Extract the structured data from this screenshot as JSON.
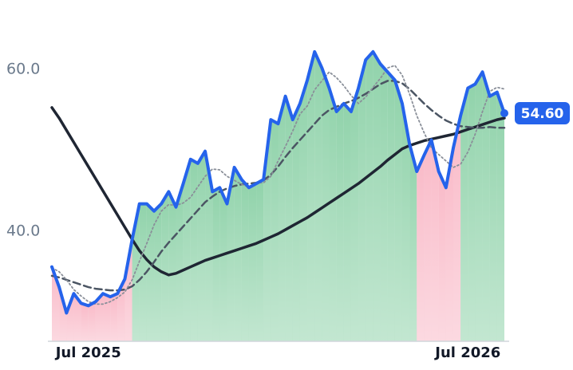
{
  "chart_data": {
    "type": "line",
    "categories": [
      null,
      null,
      null,
      null,
      null,
      "Jul 2025",
      null,
      null,
      null,
      null,
      null,
      null,
      null,
      null,
      null,
      null,
      null,
      null,
      null,
      null,
      null,
      null,
      null,
      null,
      null,
      null,
      null,
      null,
      null,
      null,
      null,
      null,
      null,
      null,
      null,
      null,
      null,
      null,
      null,
      null,
      null,
      null,
      null,
      null,
      null,
      null,
      null,
      null,
      null,
      null,
      null,
      null,
      null,
      null,
      null,
      null,
      null,
      "Jul 2026",
      null,
      null,
      null,
      null,
      null
    ],
    "ylim": [
      26.4,
      68.6
    ],
    "yticks": [
      {
        "value": 40,
        "label": "40.0"
      },
      {
        "value": 60,
        "label": "60.0"
      }
    ],
    "up_color": "#6cc48f",
    "down_color": "#f7a3b5",
    "series": [
      {
        "color": "#2563eb",
        "style": "solid",
        "width": 4,
        "values": [
          35.6,
          33.1,
          29.9,
          32.3,
          31.1,
          30.8,
          31.3,
          32.3,
          31.9,
          32.3,
          34.1,
          39.0,
          43.4,
          43.4,
          42.5,
          43.4,
          44.9,
          43.0,
          45.9,
          48.9,
          48.4,
          49.9,
          44.9,
          45.4,
          43.4,
          47.9,
          46.4,
          45.4,
          45.9,
          46.4,
          53.8,
          53.3,
          56.7,
          53.8,
          55.8,
          58.7,
          62.2,
          60.2,
          57.7,
          54.8,
          55.8,
          54.8,
          57.7,
          61.2,
          62.2,
          60.7,
          59.7,
          58.7,
          55.8,
          50.8,
          47.4,
          49.4,
          51.3,
          47.4,
          45.4,
          50.3,
          54.3,
          57.7,
          58.2,
          59.7,
          56.7,
          57.2,
          54.6
        ],
        "value_labels": [
          null,
          null,
          null,
          null,
          null,
          null,
          null,
          null,
          null,
          null,
          null,
          null,
          null,
          null,
          null,
          null,
          null,
          null,
          null,
          null,
          null,
          null,
          null,
          null,
          null,
          null,
          null,
          null,
          null,
          null,
          null,
          null,
          null,
          null,
          null,
          null,
          null,
          null,
          null,
          null,
          null,
          null,
          null,
          null,
          null,
          null,
          null,
          null,
          null,
          null,
          null,
          null,
          null,
          null,
          null,
          null,
          null,
          null,
          null,
          null,
          null,
          null,
          "54.60"
        ]
      },
      {
        "color": "#8a8f99",
        "style": "dotted",
        "width": 1.8,
        "values": [
          35.5,
          35.0,
          34.0,
          32.8,
          32.0,
          31.3,
          31.0,
          31.0,
          31.3,
          31.8,
          32.5,
          34.0,
          36.3,
          38.5,
          40.8,
          42.5,
          43.3,
          43.2,
          43.5,
          44.2,
          45.5,
          46.8,
          47.7,
          47.6,
          46.8,
          46.3,
          45.8,
          45.5,
          46.0,
          46.0,
          46.8,
          48.7,
          50.5,
          52.4,
          54.5,
          55.5,
          57.5,
          58.6,
          59.7,
          59.0,
          58.0,
          56.8,
          55.8,
          56.6,
          57.8,
          58.9,
          60.2,
          60.5,
          59.3,
          57.0,
          54.3,
          52.2,
          50.3,
          49.5,
          48.7,
          47.9,
          48.3,
          49.8,
          52.0,
          54.8,
          57.3,
          57.8,
          57.6
        ]
      },
      {
        "color": "#4b5563",
        "style": "dashed",
        "width": 2.5,
        "values": [
          34.5,
          34.3,
          34.0,
          33.7,
          33.4,
          33.1,
          32.9,
          32.8,
          32.7,
          32.7,
          32.8,
          33.2,
          34.0,
          35.0,
          36.2,
          37.5,
          38.6,
          39.6,
          40.6,
          41.6,
          42.6,
          43.6,
          44.3,
          44.9,
          45.3,
          45.6,
          45.8,
          45.9,
          46.0,
          46.3,
          47.0,
          48.0,
          49.2,
          50.3,
          51.3,
          52.3,
          53.3,
          54.3,
          55.0,
          55.4,
          55.8,
          56.1,
          56.5,
          57.0,
          57.6,
          58.2,
          58.6,
          58.6,
          58.3,
          57.6,
          56.7,
          55.8,
          55.0,
          54.3,
          53.7,
          53.3,
          53.0,
          52.9,
          52.8,
          52.8,
          52.9,
          52.8,
          52.8
        ]
      },
      {
        "color": "#1f2633",
        "style": "solid",
        "width": 3.5,
        "values": [
          55.3,
          54.0,
          52.5,
          51.0,
          49.5,
          48.0,
          46.5,
          45.0,
          43.5,
          42.0,
          40.5,
          39.0,
          37.6,
          36.5,
          35.6,
          35.0,
          34.6,
          34.8,
          35.2,
          35.6,
          36.0,
          36.4,
          36.7,
          37.0,
          37.3,
          37.6,
          37.9,
          38.2,
          38.5,
          38.9,
          39.3,
          39.7,
          40.2,
          40.7,
          41.2,
          41.7,
          42.3,
          42.9,
          43.5,
          44.1,
          44.7,
          45.3,
          45.9,
          46.6,
          47.3,
          48.0,
          48.8,
          49.5,
          50.2,
          50.6,
          50.9,
          51.2,
          51.4,
          51.6,
          51.8,
          52.0,
          52.3,
          52.6,
          52.9,
          53.2,
          53.5,
          53.8,
          54.0
        ]
      }
    ]
  }
}
